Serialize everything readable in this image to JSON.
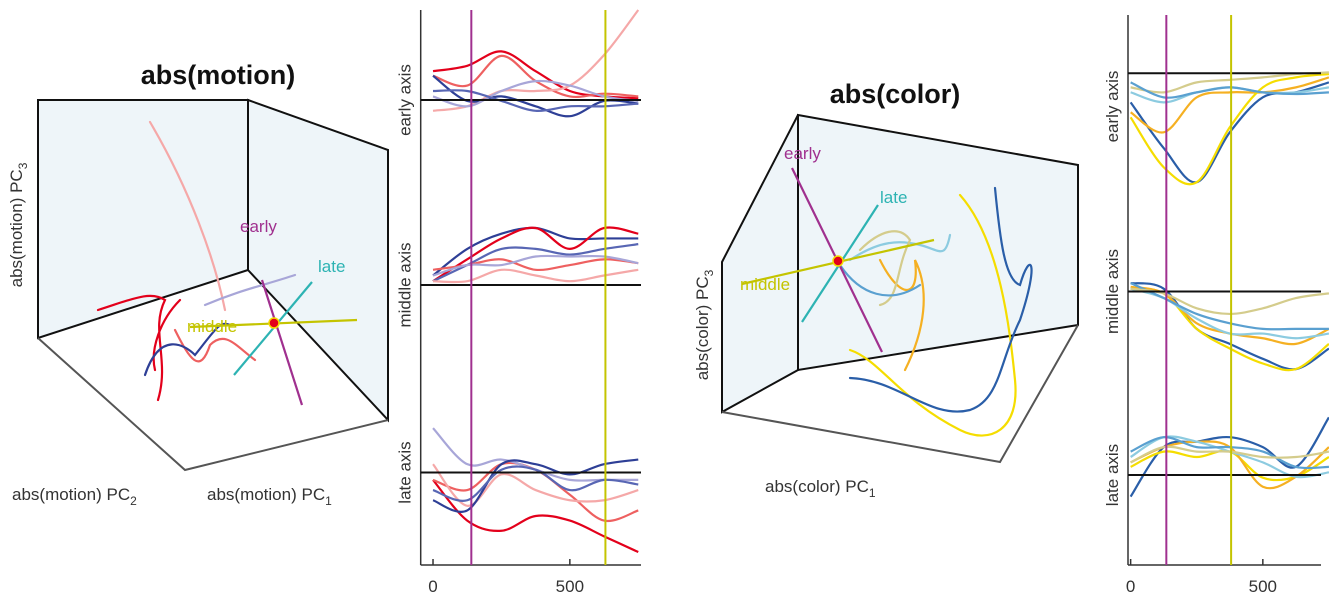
{
  "chart_data": [
    {
      "type": "line",
      "title": "abs(motion)",
      "axis_labels": [
        {
          "text": "abs(motion) PC",
          "subscript": "3"
        },
        {
          "text": "abs(motion) PC",
          "subscript": "2"
        },
        {
          "text": "abs(motion) PC",
          "subscript": "1"
        }
      ],
      "annotations": [
        {
          "text": "early",
          "color": "#a0308f"
        },
        {
          "text": "late",
          "color": "#2db3b3"
        },
        {
          "text": "middle",
          "color": "#c4c400"
        }
      ],
      "x": [
        0,
        125,
        250,
        375,
        500,
        625,
        750
      ],
      "xlim": [
        -45,
        760
      ],
      "xticks": [
        0,
        500
      ],
      "markers": [
        {
          "value": 140,
          "color": "#a0308f"
        },
        {
          "value": 630,
          "color": "#c4c400"
        }
      ],
      "axes": [
        {
          "label": "early axis",
          "ylim": [
            -1,
            1
          ],
          "series": [
            {
              "color": "#e3001b",
              "values": [
                0.32,
                0.38,
                0.54,
                0.32,
                0.1,
                0.04,
                0.02
              ]
            },
            {
              "color": "#ee6060",
              "values": [
                0.27,
                0.16,
                0.49,
                0.21,
                0.04,
                0.07,
                0.04
              ]
            },
            {
              "color": "#f5a8a8",
              "values": [
                -0.12,
                -0.07,
                0.1,
                0.1,
                0.16,
                0.5,
                1
              ]
            },
            {
              "color": "#2e3f96",
              "values": [
                0.27,
                -0.01,
                0.04,
                -0.07,
                -0.18,
                -0.01,
                -0.04
              ]
            },
            {
              "color": "#a8a6d8",
              "values": [
                0.04,
                -0.07,
                0.1,
                0.21,
                0.16,
                0.04,
                -0.01
              ]
            },
            {
              "color": "#5866b4",
              "values": [
                0.1,
                0.1,
                -0.01,
                -0.12,
                -0.07,
                -0.07,
                -0.04
              ]
            }
          ]
        },
        {
          "label": "middle axis",
          "ylim": [
            -1,
            1
          ],
          "series": [
            {
              "color": "#2e3f96",
              "values": [
                0.1,
                0.38,
                0.54,
                0.6,
                0.49,
                0.49,
                0.49
              ]
            },
            {
              "color": "#e3001b",
              "values": [
                0.04,
                0.27,
                0.49,
                0.6,
                0.38,
                0.6,
                0.54
              ]
            },
            {
              "color": "#5866b4",
              "values": [
                0.04,
                0.21,
                0.38,
                0.38,
                0.32,
                0.38,
                0.43
              ]
            },
            {
              "color": "#ee6060",
              "values": [
                0.16,
                0.21,
                0.27,
                0.16,
                0.21,
                0.27,
                0.23
              ]
            },
            {
              "color": "#a8a6d8",
              "values": [
                0.1,
                0.21,
                0.21,
                0.3,
                0.3,
                0.3,
                0.23
              ]
            },
            {
              "color": "#f5a8a8",
              "values": [
                0.04,
                0.04,
                0.16,
                0.1,
                0.04,
                0.1,
                0.16
              ]
            }
          ]
        },
        {
          "label": "late axis",
          "ylim": [
            -1,
            1
          ],
          "series": [
            {
              "color": "#e3001b",
              "values": [
                -0.08,
                -0.52,
                -0.63,
                -0.47,
                -0.52,
                -0.69,
                -0.86
              ]
            },
            {
              "color": "#ee6060",
              "values": [
                -0.08,
                -0.19,
                0.09,
                0.03,
                -0.24,
                -0.52,
                -0.41
              ]
            },
            {
              "color": "#f5a8a8",
              "values": [
                0.09,
                -0.36,
                -0.02,
                -0.19,
                -0.3,
                -0.3,
                -0.19
              ]
            },
            {
              "color": "#a8a6d8",
              "values": [
                0.48,
                0.09,
                0.14,
                0.03,
                -0.08,
                -0.08,
                -0.08
              ]
            },
            {
              "color": "#2e3f96",
              "values": [
                -0.3,
                -0.41,
                0.09,
                0.09,
                -0.02,
                0.09,
                0.14
              ]
            },
            {
              "color": "#5866b4",
              "values": [
                -0.19,
                -0.3,
                0.03,
                0.03,
                -0.19,
                -0.08,
                -0.13
              ]
            }
          ]
        }
      ]
    },
    {
      "type": "line",
      "title": "abs(color)",
      "axis_labels": [
        {
          "text": "abs(color) PC",
          "subscript": "3"
        },
        {
          "text": "abs(color) PC",
          "subscript": "1"
        }
      ],
      "annotations": [
        {
          "text": "early",
          "color": "#a0308f"
        },
        {
          "text": "late",
          "color": "#2db3b3"
        },
        {
          "text": "middle",
          "color": "#c4c400"
        }
      ],
      "x": [
        0,
        125,
        250,
        375,
        500,
        625,
        750
      ],
      "xlim": [
        -10,
        720
      ],
      "xticks": [
        0,
        500
      ],
      "markers": [
        {
          "value": 135,
          "color": "#a0308f"
        },
        {
          "value": 380,
          "color": "#c4c400"
        }
      ],
      "axes": [
        {
          "label": "early axis",
          "ylim": [
            -1.5,
            0.7
          ],
          "series": [
            {
              "color": "#2a5ea8",
              "values": [
                -0.35,
                -0.9,
                -1.31,
                -0.71,
                -0.29,
                -0.23,
                -0.11
              ]
            },
            {
              "color": "#f5b022",
              "values": [
                -0.47,
                -0.71,
                -0.29,
                -0.23,
                -0.23,
                -0.17,
                -0.05
              ]
            },
            {
              "color": "#f5dd00",
              "values": [
                -0.53,
                -1.13,
                -1.31,
                -0.65,
                -0.17,
                -0.05,
                -0.01
              ]
            },
            {
              "color": "#8ccbe0",
              "values": [
                -0.23,
                -0.35,
                -0.23,
                -0.17,
                -0.23,
                -0.23,
                -0.17
              ]
            },
            {
              "color": "#d4cc8c",
              "values": [
                -0.17,
                -0.23,
                -0.11,
                -0.08,
                -0.05,
                -0.01,
                0.01
              ]
            },
            {
              "color": "#5aa0d0",
              "values": [
                -0.11,
                -0.29,
                -0.23,
                -0.17,
                -0.23,
                -0.25,
                -0.23
              ]
            }
          ]
        },
        {
          "label": "middle axis",
          "ylim": [
            -1,
            1
          ],
          "series": [
            {
              "color": "#2a5ea8",
              "values": [
                0.09,
                0.03,
                -0.4,
                -0.56,
                -0.72,
                -0.83,
                -0.61
              ]
            },
            {
              "color": "#f5dd00",
              "values": [
                0.03,
                -0.02,
                -0.4,
                -0.61,
                -0.77,
                -0.83,
                -0.56
              ]
            },
            {
              "color": "#f5b022",
              "values": [
                0.05,
                -0.02,
                -0.34,
                -0.45,
                -0.5,
                -0.56,
                -0.4
              ]
            },
            {
              "color": "#8ccbe0",
              "values": [
                0.03,
                -0.07,
                -0.29,
                -0.45,
                -0.45,
                -0.5,
                -0.45
              ]
            },
            {
              "color": "#5aa0d0",
              "values": [
                0.09,
                -0.07,
                -0.24,
                -0.34,
                -0.4,
                -0.4,
                -0.4
              ]
            },
            {
              "color": "#d4cc8c",
              "values": [
                0.03,
                -0.02,
                -0.18,
                -0.24,
                -0.18,
                -0.07,
                -0.02
              ]
            }
          ]
        },
        {
          "label": "late axis",
          "ylim": [
            -1,
            1
          ],
          "series": [
            {
              "color": "#2a5ea8",
              "values": [
                -0.24,
                0.31,
                0.37,
                0.42,
                0.31,
                0.09,
                0.64
              ]
            },
            {
              "color": "#f5dd00",
              "values": [
                0.09,
                0.26,
                0.2,
                0.26,
                -0.03,
                -0.02,
                0.2
              ]
            },
            {
              "color": "#f5b022",
              "values": [
                0.14,
                0.31,
                0.37,
                0.31,
                -0.13,
                -0.02,
                0.31
              ]
            },
            {
              "color": "#8ccbe0",
              "values": [
                0.2,
                0.42,
                0.37,
                0.26,
                0.14,
                -0.02,
                0.03
              ]
            },
            {
              "color": "#5aa0d0",
              "values": [
                0.26,
                0.42,
                0.31,
                0.31,
                0.26,
                0.09,
                0.09
              ]
            },
            {
              "color": "#d4cc8c",
              "values": [
                0.14,
                0.31,
                0.26,
                0.26,
                0.2,
                0.2,
                0.26
              ]
            }
          ]
        }
      ]
    }
  ]
}
